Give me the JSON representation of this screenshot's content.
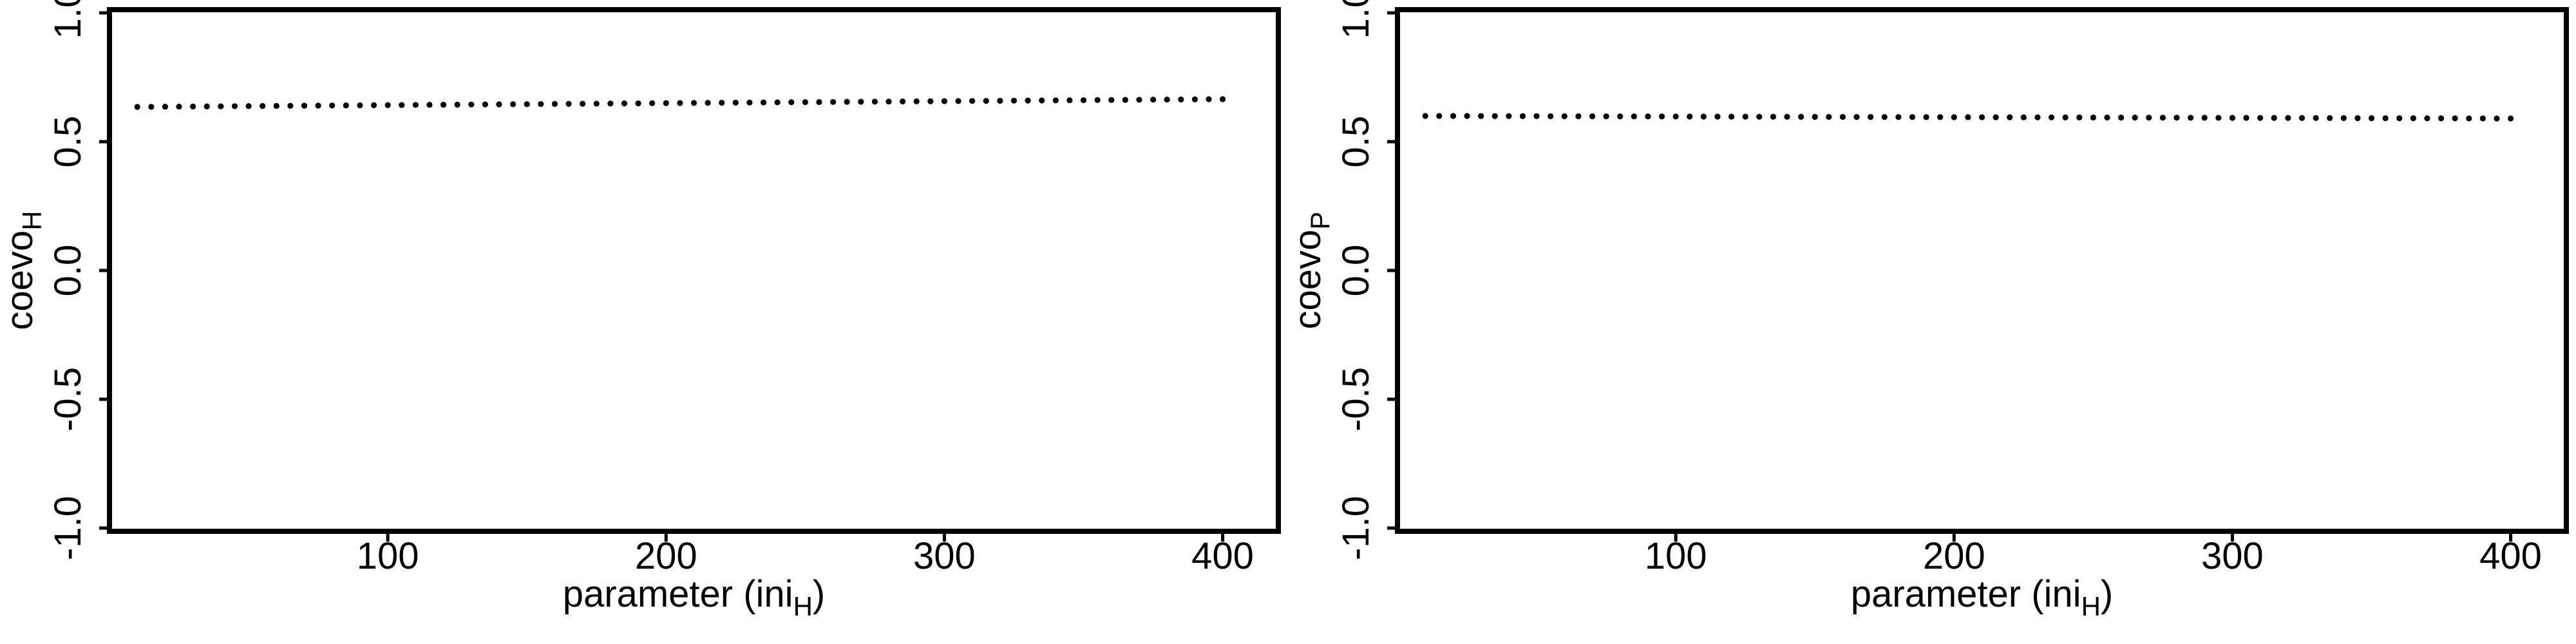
{
  "chart_data": [
    {
      "type": "scatter",
      "title": "",
      "xlabel": {
        "main": "parameter (ini",
        "sub": "H",
        "end": ")"
      },
      "ylabel": {
        "main": "coevo",
        "sub": "H"
      },
      "xlim": [
        0,
        420
      ],
      "ylim": [
        -1.0,
        1.0
      ],
      "xticks": [
        100,
        200,
        300,
        400
      ],
      "yticks": [
        -1.0,
        -0.5,
        0.0,
        0.5,
        1.0
      ],
      "ytick_labels": [
        "-1.0",
        "-0.5",
        "0.0",
        "0.5",
        "1.0"
      ],
      "grid": false,
      "series": [
        {
          "x_start": 10,
          "x_end": 400,
          "x_step": 5,
          "y_start": 0.635,
          "y_end": 0.665
        }
      ]
    },
    {
      "type": "scatter",
      "title": "",
      "xlabel": {
        "main": "parameter (ini",
        "sub": "H",
        "end": ")"
      },
      "ylabel": {
        "main": "coevo",
        "sub": "P"
      },
      "xlim": [
        0,
        420
      ],
      "ylim": [
        -1.0,
        1.0
      ],
      "xticks": [
        100,
        200,
        300,
        400
      ],
      "yticks": [
        -1.0,
        -0.5,
        0.0,
        0.5,
        1.0
      ],
      "ytick_labels": [
        "-1.0",
        "-0.5",
        "0.0",
        "0.5",
        "1.0"
      ],
      "grid": false,
      "series": [
        {
          "x_start": 10,
          "x_end": 400,
          "x_step": 5,
          "y_start": 0.6,
          "y_end": 0.59
        }
      ]
    }
  ]
}
